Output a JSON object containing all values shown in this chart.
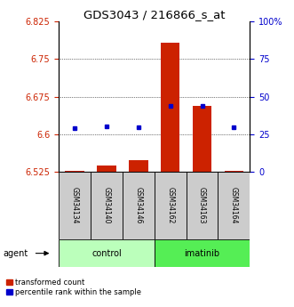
{
  "title": "GDS3043 / 216866_s_at",
  "samples": [
    "GSM34134",
    "GSM34140",
    "GSM34146",
    "GSM34162",
    "GSM34163",
    "GSM34164"
  ],
  "groups": [
    "control",
    "control",
    "control",
    "imatinib",
    "imatinib",
    "imatinib"
  ],
  "red_values": [
    6.528,
    6.537,
    6.549,
    6.783,
    6.657,
    6.528
  ],
  "blue_values": [
    6.612,
    6.616,
    6.614,
    6.656,
    6.656,
    6.614
  ],
  "baseline": 6.525,
  "ylim_left": [
    6.525,
    6.825
  ],
  "ylim_right": [
    0,
    100
  ],
  "yticks_left": [
    6.525,
    6.6,
    6.675,
    6.75,
    6.825
  ],
  "yticks_right": [
    0,
    25,
    50,
    75,
    100
  ],
  "grid_values": [
    6.6,
    6.675,
    6.75
  ],
  "bar_color": "#cc2200",
  "dot_color": "#0000cc",
  "control_color": "#bbffbb",
  "imatinib_color": "#55ee55",
  "legend_red": "transformed count",
  "legend_blue": "percentile rank within the sample",
  "bar_width": 0.6,
  "title_fontsize": 9.5,
  "tick_fontsize": 7,
  "sample_fontsize": 5.5,
  "group_fontsize": 7,
  "legend_fontsize": 6
}
